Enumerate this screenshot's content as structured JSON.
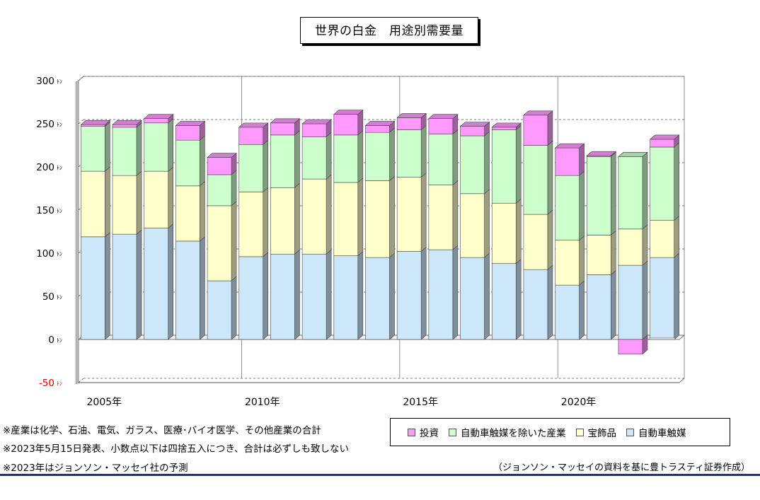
{
  "chart_data": {
    "type": "bar",
    "stacked": true,
    "title": "世界の白金　用途別需要量",
    "y_unit": "ﾄﾝ",
    "ylim": [
      -50,
      300
    ],
    "yticks": [
      -50,
      0,
      50,
      100,
      150,
      200,
      250,
      300
    ],
    "grid": "horizontal dashed, vertical solid at year labels",
    "x": [
      2005,
      2006,
      2007,
      2008,
      2009,
      2010,
      2011,
      2012,
      2013,
      2014,
      2015,
      2016,
      2017,
      2018,
      2019,
      2020,
      2021,
      2022,
      2023
    ],
    "x_tick_labels": [
      {
        "year": 2005,
        "label": "2005年"
      },
      {
        "year": 2010,
        "label": "2010年"
      },
      {
        "year": 2015,
        "label": "2015年"
      },
      {
        "year": 2020,
        "label": "2020年"
      }
    ],
    "legend_position": "bottom-right",
    "series": [
      {
        "name": "自動車触媒",
        "color": "#cce6fa",
        "values": [
          119,
          122,
          129,
          114,
          68,
          96,
          99,
          99,
          97,
          95,
          102,
          104,
          95,
          88,
          81,
          63,
          75,
          86,
          95
        ]
      },
      {
        "name": "宝飾品",
        "color": "#ffffcc",
        "values": [
          76,
          68,
          66,
          64,
          87,
          75,
          77,
          87,
          85,
          89,
          86,
          75,
          74,
          70,
          64,
          52,
          46,
          42,
          43
        ]
      },
      {
        "name": "自動車触媒を除いた産業",
        "color": "#ccffcc",
        "values": [
          52,
          56,
          56,
          53,
          36,
          55,
          61,
          49,
          55,
          56,
          55,
          59,
          67,
          85,
          80,
          75,
          91,
          84,
          85
        ]
      },
      {
        "name": "投資",
        "color": "#ff99ff",
        "values": [
          2,
          3,
          5,
          17,
          20,
          20,
          14,
          15,
          24,
          8,
          14,
          18,
          11,
          3,
          35,
          32,
          1,
          -17,
          9
        ]
      }
    ]
  },
  "legend_order": [
    "投資",
    "自動車触媒を除いた産業",
    "宝飾品",
    "自動車触媒"
  ],
  "notes": [
    "※産業は化学、石油、電気、ガラス、医療･バイオ医学、その他産業の合計",
    "※2023年5月15日発表、小数点以下は四捨五入につき、合計は必ずしも致しない",
    "※2023年はジョンソン・マッセイ社の予測"
  ],
  "source": "（ジョンソン・マッセイの資料を基に豊トラスティ証券作成）"
}
